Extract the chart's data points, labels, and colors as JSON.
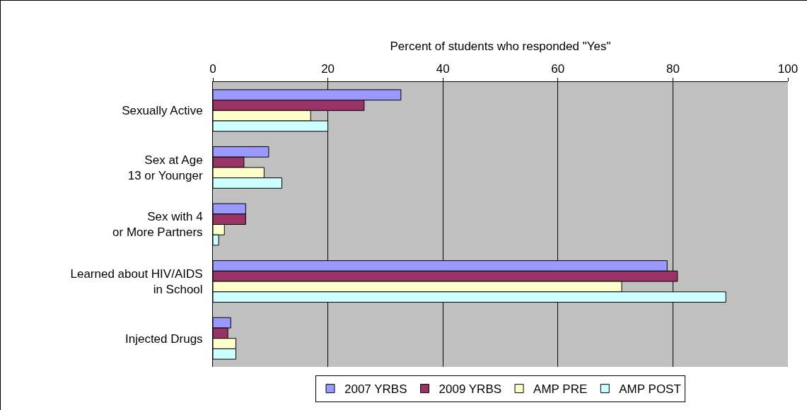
{
  "chart_data": {
    "type": "bar",
    "orientation": "horizontal",
    "xlabel": "Percent of students who responded \"Yes\"",
    "categories": [
      "Sexually Active",
      "Sex at Age 13 or Younger",
      "Sex with 4 or More Partners",
      "Learned about HIV/AIDS in School",
      "Injected Drugs"
    ],
    "series": [
      {
        "name": "2007 YRBS",
        "color": "#9999ff",
        "values": [
          32.7,
          9.7,
          5.7,
          79,
          3.1
        ]
      },
      {
        "name": "2009 YRBS",
        "color": "#993366",
        "values": [
          26.3,
          5.4,
          5.7,
          80.8,
          2.6
        ]
      },
      {
        "name": "AMP PRE",
        "color": "#ffffcc",
        "values": [
          17,
          8.9,
          2,
          71.1,
          4
        ]
      },
      {
        "name": "AMP POST",
        "color": "#ccffff",
        "values": [
          20,
          12,
          1,
          89.2,
          4
        ]
      }
    ],
    "xlim": [
      0,
      100
    ],
    "xticks": [
      0,
      20,
      40,
      60,
      80,
      100
    ],
    "grid": "x",
    "legend": "bottom"
  }
}
